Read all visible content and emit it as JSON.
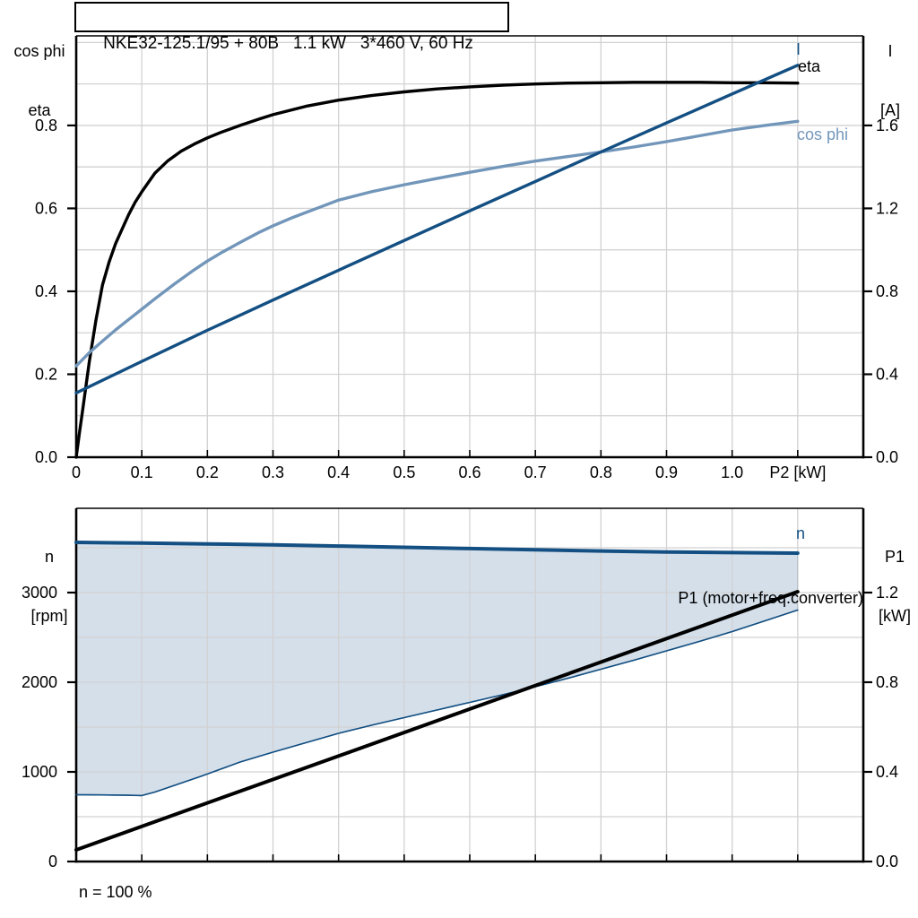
{
  "labels": {
    "title": "NKE32-125.1/95 + 80B   1.1 kW   3*460 V, 60 Hz",
    "left_axis_top_line1": "cos phi",
    "left_axis_top_line2": "eta",
    "right_axis_top_line1": "I",
    "right_axis_top_line2": "[A]",
    "left_axis_bottom_line1": "n",
    "left_axis_bottom_line2": "[rpm]",
    "right_axis_bottom_line1": "P1",
    "right_axis_bottom_line2": "[kW]",
    "curve_i": "I",
    "curve_eta": "eta",
    "curve_cosphi": "cos phi",
    "curve_n": "n",
    "curve_p1": "P1 (motor+freq.converter)",
    "annotation_n100": "n = 100 %"
  },
  "colors": {
    "navy": "#134f82",
    "steel": "#7296ba",
    "black": "#000000",
    "grid": "#d2d2d2",
    "band_fill": "#d4dfea",
    "background": "#ffffff"
  },
  "chart_data": [
    {
      "type": "line",
      "title": "NKE32-125.1/95 + 80B   1.1 kW   3*460 V, 60 Hz",
      "x_axis": {
        "label": "P2 [kW]",
        "min": 0,
        "max": 1.2,
        "grid_step": 0.1,
        "tick_values": [
          0,
          0.1,
          0.2,
          0.3,
          0.4,
          0.5,
          0.6,
          0.7,
          0.8,
          0.9,
          1.0,
          1.1
        ],
        "tick_labels": [
          "0",
          "0.1",
          "0.2",
          "0.3",
          "0.4",
          "0.5",
          "0.6",
          "0.7",
          "0.8",
          "0.9",
          "1.0",
          "P2 [kW]"
        ]
      },
      "y_left": {
        "label": "cos phi / eta",
        "lim": [
          0,
          1.016
        ],
        "grid_step": 0.1,
        "grid_max": 1.0,
        "ticks": [
          0,
          0.2,
          0.4,
          0.6,
          0.8
        ],
        "tick_labels": [
          "0.0",
          "0.2",
          "0.4",
          "0.6",
          "0.8"
        ]
      },
      "y_right": {
        "label": "I [A]",
        "lim": [
          0,
          2.032
        ],
        "ticks": [
          0,
          0.4,
          0.8,
          1.2,
          1.6
        ],
        "tick_labels": [
          "0.0",
          "0.4",
          "0.8",
          "1.2",
          "1.6"
        ]
      },
      "series": [
        {
          "name": "eta",
          "axis": "left",
          "color": "black",
          "width": 3.4,
          "points": [
            [
              0,
              0
            ],
            [
              0.005,
              0.06
            ],
            [
              0.01,
              0.115
            ],
            [
              0.02,
              0.23
            ],
            [
              0.03,
              0.33
            ],
            [
              0.04,
              0.415
            ],
            [
              0.05,
              0.47
            ],
            [
              0.06,
              0.515
            ],
            [
              0.07,
              0.55
            ],
            [
              0.08,
              0.585
            ],
            [
              0.09,
              0.615
            ],
            [
              0.1,
              0.64
            ],
            [
              0.12,
              0.685
            ],
            [
              0.14,
              0.715
            ],
            [
              0.16,
              0.738
            ],
            [
              0.18,
              0.755
            ],
            [
              0.2,
              0.77
            ],
            [
              0.22,
              0.783
            ],
            [
              0.25,
              0.8
            ],
            [
              0.28,
              0.816
            ],
            [
              0.3,
              0.826
            ],
            [
              0.35,
              0.846
            ],
            [
              0.4,
              0.861
            ],
            [
              0.45,
              0.872
            ],
            [
              0.5,
              0.881
            ],
            [
              0.55,
              0.888
            ],
            [
              0.6,
              0.893
            ],
            [
              0.65,
              0.897
            ],
            [
              0.7,
              0.9
            ],
            [
              0.75,
              0.902
            ],
            [
              0.8,
              0.903
            ],
            [
              0.85,
              0.904
            ],
            [
              0.9,
              0.904
            ],
            [
              0.95,
              0.904
            ],
            [
              1.0,
              0.903
            ],
            [
              1.05,
              0.903
            ],
            [
              1.1,
              0.902
            ]
          ]
        },
        {
          "name": "cos phi",
          "axis": "left",
          "color": "steel",
          "width": 3.4,
          "points": [
            [
              0,
              0.22
            ],
            [
              0.02,
              0.252
            ],
            [
              0.04,
              0.28
            ],
            [
              0.06,
              0.307
            ],
            [
              0.08,
              0.332
            ],
            [
              0.1,
              0.357
            ],
            [
              0.12,
              0.382
            ],
            [
              0.15,
              0.418
            ],
            [
              0.18,
              0.452
            ],
            [
              0.2,
              0.473
            ],
            [
              0.22,
              0.492
            ],
            [
              0.25,
              0.518
            ],
            [
              0.28,
              0.543
            ],
            [
              0.3,
              0.558
            ],
            [
              0.33,
              0.578
            ],
            [
              0.36,
              0.596
            ],
            [
              0.4,
              0.62
            ],
            [
              0.45,
              0.64
            ],
            [
              0.5,
              0.657
            ],
            [
              0.55,
              0.672
            ],
            [
              0.6,
              0.687
            ],
            [
              0.65,
              0.701
            ],
            [
              0.7,
              0.714
            ],
            [
              0.75,
              0.725
            ],
            [
              0.8,
              0.736
            ],
            [
              0.85,
              0.748
            ],
            [
              0.9,
              0.761
            ],
            [
              0.95,
              0.775
            ],
            [
              1.0,
              0.789
            ],
            [
              1.05,
              0.8
            ],
            [
              1.1,
              0.81
            ]
          ]
        },
        {
          "name": "I",
          "axis": "right",
          "color": "navy",
          "width": 3.4,
          "points": [
            [
              0,
              0.31
            ],
            [
              0.1,
              0.462
            ],
            [
              0.2,
              0.612
            ],
            [
              0.3,
              0.758
            ],
            [
              0.4,
              0.902
            ],
            [
              0.5,
              1.045
            ],
            [
              0.6,
              1.188
            ],
            [
              0.7,
              1.33
            ],
            [
              0.8,
              1.472
            ],
            [
              0.9,
              1.612
            ],
            [
              1.0,
              1.752
            ],
            [
              1.05,
              1.821
            ],
            [
              1.1,
              1.89
            ]
          ]
        }
      ]
    },
    {
      "type": "line",
      "title": "",
      "annotation": "n = 100 %",
      "x_axis": {
        "label": "",
        "min": 0,
        "max": 1.2,
        "grid_step": 0.1,
        "tick_values": [
          0,
          0.1,
          0.2,
          0.3,
          0.4,
          0.5,
          0.6,
          0.7,
          0.8,
          0.9,
          1.0,
          1.1
        ],
        "tick_labels": []
      },
      "y_left": {
        "label": "n [rpm]",
        "lim": [
          0,
          3940
        ],
        "grid_step": 500,
        "grid_max": 3500,
        "ticks": [
          0,
          1000,
          2000,
          3000
        ],
        "tick_labels": [
          "0",
          "1000",
          "2000",
          "3000"
        ]
      },
      "y_right": {
        "label": "P1 [kW]",
        "lim": [
          0,
          1.576
        ],
        "ticks": [
          0,
          0.4,
          0.8,
          1.2
        ],
        "tick_labels": [
          "0.0",
          "0.4",
          "0.8",
          "1.2"
        ]
      },
      "band": {
        "upper": "n",
        "lower": "n min",
        "fill": "band_fill",
        "edge_color": "navy",
        "edge_width": 1.4
      },
      "series": [
        {
          "name": "n min",
          "axis": "left",
          "color": "navy",
          "width": 1.6,
          "points": [
            [
              0,
              745
            ],
            [
              0.04,
              743
            ],
            [
              0.08,
              739
            ],
            [
              0.1,
              736
            ],
            [
              0.12,
              775
            ],
            [
              0.15,
              850
            ],
            [
              0.19,
              950
            ],
            [
              0.22,
              1030
            ],
            [
              0.25,
              1110
            ],
            [
              0.3,
              1220
            ],
            [
              0.35,
              1325
            ],
            [
              0.4,
              1430
            ],
            [
              0.45,
              1520
            ],
            [
              0.5,
              1605
            ],
            [
              0.55,
              1690
            ],
            [
              0.6,
              1775
            ],
            [
              0.65,
              1860
            ],
            [
              0.7,
              1950
            ],
            [
              0.75,
              2045
            ],
            [
              0.8,
              2145
            ],
            [
              0.85,
              2245
            ],
            [
              0.9,
              2350
            ],
            [
              0.95,
              2455
            ],
            [
              1.0,
              2565
            ],
            [
              1.05,
              2685
            ],
            [
              1.1,
              2805
            ]
          ]
        },
        {
          "name": "P1",
          "axis": "right",
          "color": "black",
          "width": 4,
          "points": [
            [
              0,
              0.052
            ],
            [
              1.1,
              1.204
            ]
          ]
        },
        {
          "name": "n",
          "axis": "left",
          "color": "navy",
          "width": 4,
          "points": [
            [
              0,
              3560
            ],
            [
              0.1,
              3552
            ],
            [
              0.2,
              3543
            ],
            [
              0.3,
              3532
            ],
            [
              0.4,
              3519
            ],
            [
              0.5,
              3505
            ],
            [
              0.6,
              3491
            ],
            [
              0.7,
              3477
            ],
            [
              0.8,
              3464
            ],
            [
              0.9,
              3453
            ],
            [
              1.0,
              3446
            ],
            [
              1.1,
              3440
            ]
          ]
        }
      ]
    }
  ]
}
